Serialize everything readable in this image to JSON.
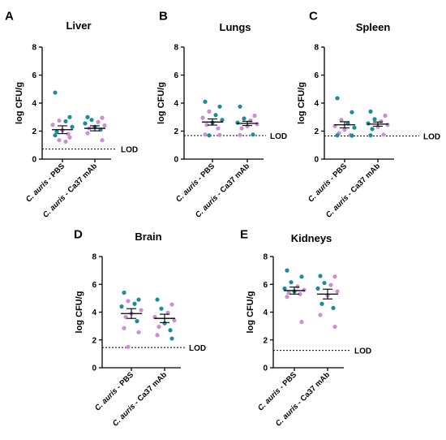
{
  "chart_data": [
    {
      "type": "scatter",
      "panel_label": "A",
      "title": "Liver",
      "ylabel": "log CFU/g",
      "ylim": [
        0,
        8
      ],
      "yticks": [
        0,
        2,
        4,
        6,
        8
      ],
      "categories": [
        {
          "italic": "C. auris",
          "rest": " - PBS"
        },
        {
          "italic": "C. auris",
          "rest": " - Ca37 mAb"
        }
      ],
      "lod": {
        "value": 0.72,
        "label": "LOD"
      },
      "groups": [
        {
          "mean": 2.1,
          "sem": 0.28,
          "points": [
            {
              "y": 4.75,
              "c": "t"
            },
            {
              "y": 3.0,
              "c": "t"
            },
            {
              "y": 2.75,
              "c": "p"
            },
            {
              "y": 2.7,
              "c": "t"
            },
            {
              "y": 2.45,
              "c": "p"
            },
            {
              "y": 2.3,
              "c": "t"
            },
            {
              "y": 2.05,
              "c": "p"
            },
            {
              "y": 1.95,
              "c": "t"
            },
            {
              "y": 1.8,
              "c": "p"
            },
            {
              "y": 1.7,
              "c": "t"
            },
            {
              "y": 1.55,
              "c": "p"
            },
            {
              "y": 1.35,
              "c": "p"
            },
            {
              "y": 1.25,
              "c": "p"
            }
          ]
        },
        {
          "mean": 2.2,
          "sem": 0.18,
          "points": [
            {
              "y": 3.0,
              "c": "t"
            },
            {
              "y": 2.95,
              "c": "p"
            },
            {
              "y": 2.8,
              "c": "t"
            },
            {
              "y": 2.65,
              "c": "p"
            },
            {
              "y": 2.55,
              "c": "t"
            },
            {
              "y": 2.4,
              "c": "p"
            },
            {
              "y": 2.3,
              "c": "t"
            },
            {
              "y": 2.2,
              "c": "p"
            },
            {
              "y": 2.1,
              "c": "t"
            },
            {
              "y": 1.85,
              "c": "p"
            },
            {
              "y": 1.35,
              "c": "p"
            }
          ]
        }
      ]
    },
    {
      "type": "scatter",
      "panel_label": "B",
      "title": "Lungs",
      "ylabel": "log CFU/g",
      "ylim": [
        0,
        8
      ],
      "yticks": [
        0,
        2,
        4,
        6,
        8
      ],
      "categories": [
        {
          "italic": "C. auris",
          "rest": " - PBS"
        },
        {
          "italic": "C. auris",
          "rest": " - Ca37 mAb"
        }
      ],
      "lod": {
        "value": 1.68,
        "label": "LOD"
      },
      "groups": [
        {
          "mean": 2.65,
          "sem": 0.22,
          "points": [
            {
              "y": 4.1,
              "c": "t"
            },
            {
              "y": 3.75,
              "c": "t"
            },
            {
              "y": 3.4,
              "c": "p"
            },
            {
              "y": 3.15,
              "c": "t"
            },
            {
              "y": 2.95,
              "c": "p"
            },
            {
              "y": 2.8,
              "c": "t"
            },
            {
              "y": 2.6,
              "c": "t"
            },
            {
              "y": 2.45,
              "c": "p"
            },
            {
              "y": 2.2,
              "c": "p"
            },
            {
              "y": 1.75,
              "c": "p"
            },
            {
              "y": 1.72,
              "c": "p"
            },
            {
              "y": 1.7,
              "c": "t"
            }
          ]
        },
        {
          "mean": 2.55,
          "sem": 0.15,
          "points": [
            {
              "y": 3.75,
              "c": "t"
            },
            {
              "y": 3.1,
              "c": "p"
            },
            {
              "y": 2.9,
              "c": "t"
            },
            {
              "y": 2.75,
              "c": "p"
            },
            {
              "y": 2.6,
              "c": "t"
            },
            {
              "y": 2.5,
              "c": "p"
            },
            {
              "y": 2.35,
              "c": "p"
            },
            {
              "y": 2.2,
              "c": "p"
            },
            {
              "y": 1.75,
              "c": "t"
            },
            {
              "y": 1.72,
              "c": "p"
            }
          ]
        }
      ]
    },
    {
      "type": "scatter",
      "panel_label": "C",
      "title": "Spleen",
      "ylabel": "log CFU/g",
      "ylim": [
        0,
        8
      ],
      "yticks": [
        0,
        2,
        4,
        6,
        8
      ],
      "categories": [
        {
          "italic": "C. auris",
          "rest": " - PBS"
        },
        {
          "italic": "C. auris",
          "rest": " - Ca37 mAb"
        }
      ],
      "lod": {
        "value": 1.65,
        "label": "LOD"
      },
      "groups": [
        {
          "mean": 2.45,
          "sem": 0.22,
          "points": [
            {
              "y": 4.35,
              "c": "t"
            },
            {
              "y": 3.35,
              "c": "t"
            },
            {
              "y": 2.8,
              "c": "p"
            },
            {
              "y": 2.55,
              "c": "t"
            },
            {
              "y": 2.35,
              "c": "p"
            },
            {
              "y": 2.25,
              "c": "t"
            },
            {
              "y": 2.1,
              "c": "p"
            },
            {
              "y": 1.85,
              "c": "p"
            },
            {
              "y": 1.72,
              "c": "p"
            },
            {
              "y": 1.7,
              "c": "t"
            },
            {
              "y": 1.68,
              "c": "t"
            }
          ]
        },
        {
          "mean": 2.5,
          "sem": 0.15,
          "points": [
            {
              "y": 3.4,
              "c": "t"
            },
            {
              "y": 3.1,
              "c": "p"
            },
            {
              "y": 2.85,
              "c": "t"
            },
            {
              "y": 2.7,
              "c": "p"
            },
            {
              "y": 2.55,
              "c": "t"
            },
            {
              "y": 2.45,
              "c": "p"
            },
            {
              "y": 2.3,
              "c": "p"
            },
            {
              "y": 2.15,
              "c": "t"
            },
            {
              "y": 1.75,
              "c": "p"
            },
            {
              "y": 1.7,
              "c": "t"
            }
          ]
        }
      ]
    },
    {
      "type": "scatter",
      "panel_label": "D",
      "title": "Brain",
      "ylabel": "log CFU/g",
      "ylim": [
        0,
        8
      ],
      "yticks": [
        0,
        2,
        4,
        6,
        8
      ],
      "categories": [
        {
          "italic": "C. auris",
          "rest": " - PBS"
        },
        {
          "italic": "C. auris",
          "rest": " - Ca37 mAb"
        }
      ],
      "lod": {
        "value": 1.45,
        "label": "LOD"
      },
      "groups": [
        {
          "mean": 3.9,
          "sem": 0.35,
          "points": [
            {
              "y": 5.4,
              "c": "t"
            },
            {
              "y": 4.9,
              "c": "t"
            },
            {
              "y": 4.8,
              "c": "p"
            },
            {
              "y": 4.6,
              "c": "t"
            },
            {
              "y": 4.4,
              "c": "t"
            },
            {
              "y": 4.15,
              "c": "p"
            },
            {
              "y": 3.9,
              "c": "p"
            },
            {
              "y": 3.65,
              "c": "p"
            },
            {
              "y": 3.35,
              "c": "t"
            },
            {
              "y": 2.85,
              "c": "p"
            },
            {
              "y": 2.55,
              "c": "p"
            },
            {
              "y": 1.5,
              "c": "p"
            }
          ]
        },
        {
          "mean": 3.55,
          "sem": 0.3,
          "points": [
            {
              "y": 4.9,
              "c": "t"
            },
            {
              "y": 4.55,
              "c": "p"
            },
            {
              "y": 4.25,
              "c": "t"
            },
            {
              "y": 3.95,
              "c": "p"
            },
            {
              "y": 3.65,
              "c": "p"
            },
            {
              "y": 3.4,
              "c": "p"
            },
            {
              "y": 3.2,
              "c": "t"
            },
            {
              "y": 2.95,
              "c": "p"
            },
            {
              "y": 2.7,
              "c": "t"
            },
            {
              "y": 2.35,
              "c": "p"
            },
            {
              "y": 2.1,
              "c": "t"
            }
          ]
        }
      ]
    },
    {
      "type": "scatter",
      "panel_label": "E",
      "title": "Kidneys",
      "ylabel": "log CFU/g",
      "ylim": [
        0,
        8
      ],
      "yticks": [
        0,
        2,
        4,
        6,
        8
      ],
      "categories": [
        {
          "italic": "C. auris",
          "rest": " - PBS"
        },
        {
          "italic": "C. auris",
          "rest": " - Ca37 mAb"
        }
      ],
      "lod": {
        "value": 1.25,
        "label": "LOD"
      },
      "groups": [
        {
          "mean": 5.55,
          "sem": 0.25,
          "points": [
            {
              "y": 7.0,
              "c": "t"
            },
            {
              "y": 6.55,
              "c": "t"
            },
            {
              "y": 6.15,
              "c": "t"
            },
            {
              "y": 5.85,
              "c": "p"
            },
            {
              "y": 5.7,
              "c": "t"
            },
            {
              "y": 5.6,
              "c": "p"
            },
            {
              "y": 5.5,
              "c": "t"
            },
            {
              "y": 5.4,
              "c": "p"
            },
            {
              "y": 5.3,
              "c": "p"
            },
            {
              "y": 5.1,
              "c": "p"
            },
            {
              "y": 3.3,
              "c": "p"
            }
          ]
        },
        {
          "mean": 5.3,
          "sem": 0.35,
          "points": [
            {
              "y": 6.6,
              "c": "t"
            },
            {
              "y": 6.55,
              "c": "p"
            },
            {
              "y": 6.1,
              "c": "t"
            },
            {
              "y": 5.95,
              "c": "p"
            },
            {
              "y": 5.7,
              "c": "t"
            },
            {
              "y": 5.5,
              "c": "p"
            },
            {
              "y": 5.2,
              "c": "p"
            },
            {
              "y": 4.6,
              "c": "t"
            },
            {
              "y": 4.3,
              "c": "t"
            },
            {
              "y": 3.8,
              "c": "p"
            },
            {
              "y": 2.95,
              "c": "p"
            }
          ]
        }
      ]
    }
  ],
  "colors": {
    "t": "#1a8c9c",
    "p": "#cc8ed4",
    "axis": "#000000"
  }
}
